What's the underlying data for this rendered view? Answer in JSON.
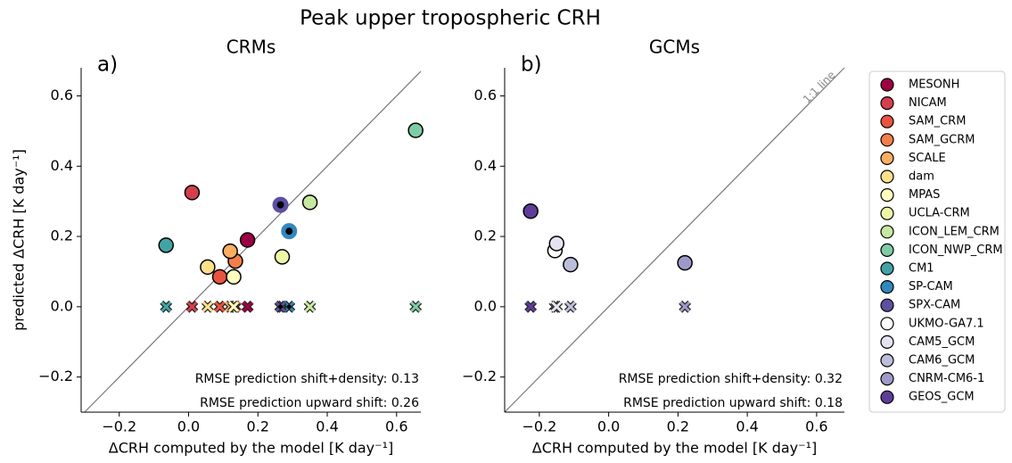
{
  "title": "Peak upper tropospheric CRH",
  "chart_data": [
    {
      "type": "scatter",
      "panel_label": "a)",
      "title": "CRMs",
      "xlabel": "ΔCRH computed by the model [K day⁻¹]",
      "ylabel": "predicted ΔCRH [K day⁻¹]",
      "xlim": [
        -0.31,
        0.67
      ],
      "ylim": [
        -0.3,
        0.68
      ],
      "xticks": [
        {
          "value": -0.2,
          "label": "−0.2"
        },
        {
          "value": 0,
          "label": "0.0"
        },
        0.2,
        0.4,
        0.6
      ],
      "yticks": [
        {
          "value": -0.2,
          "label": "−0.2"
        },
        {
          "value": 0,
          "label": "0.0"
        },
        0.2,
        0.4,
        0.6
      ],
      "annotations": [
        "RMSE prediction shift+density: 0.13",
        "RMSE prediction upward shift:  0.26"
      ],
      "series": [
        {
          "name": "MESONH",
          "color": "#9e0142",
          "x": [
            0.17
          ],
          "values": [
            0.19
          ],
          "upward_shift_values": [
            0
          ]
        },
        {
          "name": "NICAM",
          "color": "#d53e4f",
          "x": [
            0.01
          ],
          "values": [
            0.325
          ],
          "upward_shift_values": [
            0
          ]
        },
        {
          "name": "SAM_CRM",
          "color": "#e8543f",
          "x": [
            0.09
          ],
          "values": [
            0.085
          ],
          "upward_shift_values": [
            0
          ]
        },
        {
          "name": "SAM_GCRM",
          "color": "#f47d4a",
          "x": [
            0.135
          ],
          "values": [
            0.13
          ],
          "upward_shift_values": [
            0
          ]
        },
        {
          "name": "SCALE",
          "color": "#fdae61",
          "x": [
            0.12
          ],
          "values": [
            0.158
          ],
          "upward_shift_values": [
            0
          ]
        },
        {
          "name": "dam",
          "color": "#fee08b",
          "x": [
            0.055
          ],
          "values": [
            0.113
          ],
          "upward_shift_values": [
            0
          ]
        },
        {
          "name": "MPAS",
          "color": "#ffffbf",
          "x": [
            0.13
          ],
          "values": [
            0.085
          ],
          "upward_shift_values": [
            0
          ]
        },
        {
          "name": "UCLA-CRM",
          "color": "#eef6a6",
          "x": [
            0.27
          ],
          "values": [
            0.142
          ],
          "upward_shift_values": [
            0
          ]
        },
        {
          "name": "ICON_LEM_CRM",
          "color": "#c7e8a0",
          "x": [
            0.35
          ],
          "values": [
            0.297
          ],
          "upward_shift_values": [
            0
          ]
        },
        {
          "name": "ICON_NWP_CRM",
          "color": "#7fcba4",
          "x": [
            0.655
          ],
          "values": [
            0.502
          ],
          "upward_shift_values": [
            0
          ]
        },
        {
          "name": "CM1",
          "color": "#43a3a4",
          "x": [
            -0.065
          ],
          "values": [
            0.175
          ],
          "upward_shift_values": [
            0
          ]
        },
        {
          "name": "SP-CAM",
          "color": "#3288bd",
          "x": [
            0.29
          ],
          "values": [
            0.215
          ],
          "upward_shift_values": [
            0
          ],
          "inner_dot": true
        },
        {
          "name": "SPX-CAM",
          "color": "#5e4fa2",
          "x": [
            0.265
          ],
          "values": [
            0.29
          ],
          "upward_shift_values": [
            0
          ],
          "inner_dot": true
        }
      ]
    },
    {
      "type": "scatter",
      "panel_label": "b)",
      "title": "GCMs",
      "xlabel": "ΔCRH computed by the model [K day⁻¹]",
      "xlim": [
        -0.3,
        0.68
      ],
      "ylim": [
        -0.3,
        0.68
      ],
      "xticks": [
        {
          "value": -0.2,
          "label": "−0.2"
        },
        {
          "value": 0,
          "label": "0.0"
        },
        0.2,
        0.4,
        0.6
      ],
      "yticks": [
        {
          "value": -0.2,
          "label": "−0.2"
        },
        {
          "value": 0,
          "label": "0.0"
        },
        0.2,
        0.4,
        0.6
      ],
      "line_label": "1:1 line",
      "annotations": [
        "RMSE prediction shift+density: 0.32",
        "RMSE prediction upward shift:  0.18"
      ],
      "series": [
        {
          "name": "UKMO-GA7.1",
          "color": "#ffffff",
          "x": [
            -0.155
          ],
          "values": [
            0.16
          ],
          "upward_shift_values": [
            0
          ]
        },
        {
          "name": "CAM5_GCM",
          "color": "#e4e3f0",
          "x": [
            -0.15
          ],
          "values": [
            0.18
          ],
          "upward_shift_values": [
            0
          ]
        },
        {
          "name": "CAM6_GCM",
          "color": "#bcbddc",
          "x": [
            -0.11
          ],
          "values": [
            0.12
          ],
          "upward_shift_values": [
            0
          ]
        },
        {
          "name": "CNRM-CM6-1",
          "color": "#9e9ac8",
          "x": [
            0.22
          ],
          "values": [
            0.125
          ],
          "upward_shift_values": [
            0
          ]
        },
        {
          "name": "GEOS_GCM",
          "color": "#5e3c99",
          "x": [
            -0.225
          ],
          "values": [
            0.272
          ],
          "upward_shift_values": [
            0
          ]
        }
      ]
    }
  ]
}
